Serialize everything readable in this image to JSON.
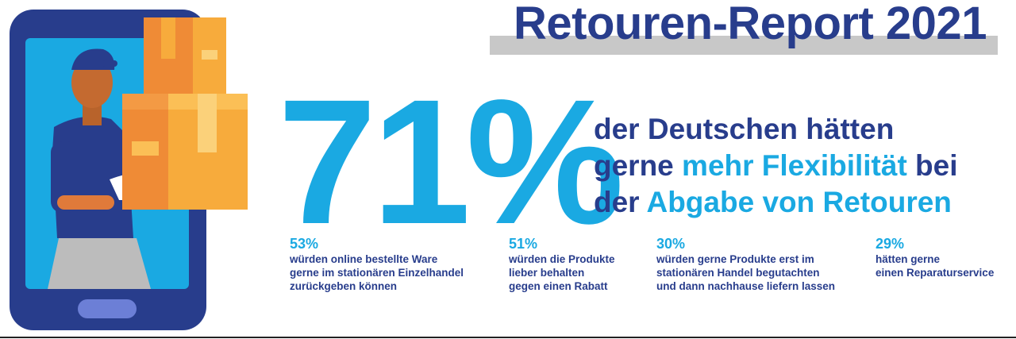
{
  "title": "Retouren-Report 2021",
  "big_stat": "71%",
  "headline": {
    "line1": "der Deutschen hätten",
    "line2_pre": "gerne ",
    "line2_hl": "mehr Flexibilität",
    "line2_post": " bei",
    "line3_pre": "der ",
    "line3_hl": "Abgabe von Retouren"
  },
  "stats": [
    {
      "pct": "53%",
      "lines": [
        "würden online bestellte Ware",
        "gerne im stationären Einzelhandel",
        "zurückgeben können"
      ]
    },
    {
      "pct": "51%",
      "lines": [
        "würden die Produkte",
        "lieber behalten",
        "gegen einen Rabatt"
      ]
    },
    {
      "pct": "30%",
      "lines": [
        "würden gerne Produkte erst im",
        "stationären Handel begutachten",
        "und dann nachhause liefern lassen"
      ]
    },
    {
      "pct": "29%",
      "lines": [
        "hätten gerne",
        "einen Reparaturservice"
      ]
    }
  ],
  "colors": {
    "navy": "#283d8c",
    "accent": "#1aa9e2",
    "box_dark": "#ef8b36",
    "box_light": "#f7ab3c"
  }
}
